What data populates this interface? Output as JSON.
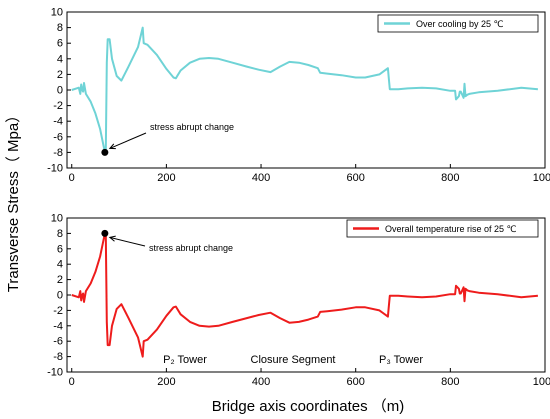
{
  "figure": {
    "ylabel": "Transverse Stress（ Mpa）",
    "xlabel": "Bridge axis coordinates （m)"
  },
  "chart_data": [
    {
      "type": "line",
      "xlim": [
        -10,
        1000
      ],
      "ylim": [
        -10,
        10
      ],
      "xticks": [
        0,
        200,
        400,
        600,
        800,
        1000
      ],
      "yticks": [
        -10,
        -8,
        -6,
        -4,
        -2,
        0,
        2,
        4,
        6,
        8,
        10
      ],
      "grid": false,
      "legend_position": "top-right",
      "series": [
        {
          "name": "Over cooling by 25 ℃",
          "color": "#6fd3d6",
          "x": [
            0,
            15,
            18,
            20,
            22,
            24,
            26,
            30,
            40,
            50,
            60,
            65,
            70,
            72,
            74,
            76,
            80,
            85,
            95,
            105,
            120,
            140,
            150,
            152,
            160,
            180,
            200,
            215,
            220,
            222,
            230,
            250,
            270,
            290,
            310,
            340,
            370,
            395,
            420,
            440,
            460,
            480,
            500,
            520,
            525,
            540,
            570,
            600,
            620,
            650,
            668,
            670,
            672,
            690,
            710,
            740,
            770,
            800,
            810,
            812,
            818,
            820,
            822,
            828,
            830,
            832,
            836,
            840,
            860,
            900,
            950,
            985
          ],
          "y": [
            0,
            0.3,
            -0.5,
            0.7,
            0,
            -0.2,
            0.9,
            -0.5,
            -1.5,
            -3,
            -5,
            -6.5,
            -8,
            -7.8,
            3.5,
            6.5,
            6.5,
            4,
            1.8,
            1.2,
            3,
            5.5,
            8,
            6,
            5.8,
            4.5,
            2.7,
            1.6,
            1.5,
            1.7,
            2.5,
            3.5,
            4,
            4.1,
            4,
            3.5,
            3,
            2.6,
            2.3,
            3,
            3.6,
            3.5,
            3.2,
            2.8,
            2.2,
            2.1,
            1.9,
            1.6,
            1.6,
            2,
            2.8,
            1.5,
            0.1,
            0.1,
            0.2,
            0.3,
            0.2,
            -0.1,
            -0.1,
            -1.2,
            -0.8,
            -0.2,
            -0.2,
            -1,
            0.8,
            -0.8,
            -0.6,
            -0.5,
            -0.3,
            -0.1,
            0.3,
            0.1
          ]
        }
      ],
      "annotations": [
        {
          "text": "stress abrupt change",
          "x": 70,
          "y": -8
        }
      ]
    },
    {
      "type": "line",
      "xlim": [
        -10,
        1000
      ],
      "ylim": [
        -10,
        10
      ],
      "xticks": [
        0,
        200,
        400,
        600,
        800,
        1000
      ],
      "yticks": [
        -10,
        -8,
        -6,
        -4,
        -2,
        0,
        2,
        4,
        6,
        8,
        10
      ],
      "grid": false,
      "legend_position": "top-right",
      "series": [
        {
          "name": "Overall temperature rise of 25 ℃",
          "color": "#ee1c1c",
          "x": [
            0,
            15,
            18,
            20,
            22,
            24,
            26,
            30,
            40,
            50,
            60,
            65,
            70,
            72,
            74,
            76,
            80,
            85,
            95,
            105,
            120,
            140,
            150,
            152,
            160,
            180,
            200,
            215,
            220,
            222,
            230,
            250,
            270,
            290,
            310,
            340,
            370,
            395,
            420,
            440,
            460,
            480,
            500,
            520,
            525,
            540,
            570,
            600,
            620,
            650,
            668,
            670,
            672,
            690,
            710,
            740,
            770,
            800,
            810,
            812,
            818,
            820,
            822,
            828,
            830,
            832,
            836,
            840,
            860,
            900,
            950,
            985
          ],
          "y": [
            0,
            -0.3,
            0.5,
            -0.7,
            0,
            0.2,
            -0.9,
            0.5,
            1.5,
            3,
            5,
            6.5,
            8,
            7.8,
            -3.5,
            -6.5,
            -6.5,
            -4,
            -1.8,
            -1.2,
            -3,
            -5.5,
            -8,
            -6,
            -5.8,
            -4.5,
            -2.7,
            -1.6,
            -1.5,
            -1.7,
            -2.5,
            -3.5,
            -4,
            -4.1,
            -4,
            -3.5,
            -3,
            -2.6,
            -2.3,
            -3,
            -3.6,
            -3.5,
            -3.2,
            -2.8,
            -2.2,
            -2.1,
            -1.9,
            -1.6,
            -1.6,
            -2,
            -2.8,
            -1.5,
            -0.1,
            -0.1,
            -0.2,
            -0.3,
            -0.2,
            0.1,
            0.1,
            1.2,
            0.8,
            0.2,
            0.2,
            1,
            -0.8,
            0.8,
            0.6,
            0.5,
            0.3,
            0.1,
            -0.3,
            -0.1
          ]
        }
      ],
      "annotations": [
        {
          "text": "stress abrupt change",
          "x": 70,
          "y": 8
        },
        {
          "text": "P₂ Tower",
          "x": 222,
          "y": -8.5
        },
        {
          "text": "Closure Segment",
          "x": 412,
          "y": -8.5
        },
        {
          "text": "P₃ Tower",
          "x": 670,
          "y": -8.5
        }
      ]
    }
  ]
}
